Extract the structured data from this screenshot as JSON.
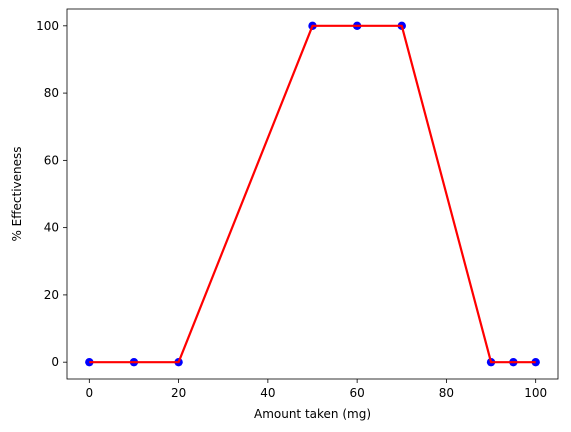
{
  "chart_data": {
    "type": "line",
    "title": "",
    "xlabel": "Amount taken (mg)",
    "ylabel": "% Effectiveness",
    "xlim": [
      -5,
      105
    ],
    "ylim": [
      -5,
      105
    ],
    "xticks": [
      0,
      20,
      40,
      60,
      80,
      100
    ],
    "yticks": [
      0,
      20,
      40,
      60,
      80,
      100
    ],
    "grid": false,
    "legend": "none",
    "series": [
      {
        "x": [
          0,
          10,
          20,
          50,
          60,
          70,
          90,
          95,
          100
        ],
        "y": [
          0,
          0,
          0,
          100,
          100,
          100,
          0,
          0,
          0
        ],
        "line_color": "#ff0000",
        "marker_color": "#0000ff"
      }
    ]
  }
}
